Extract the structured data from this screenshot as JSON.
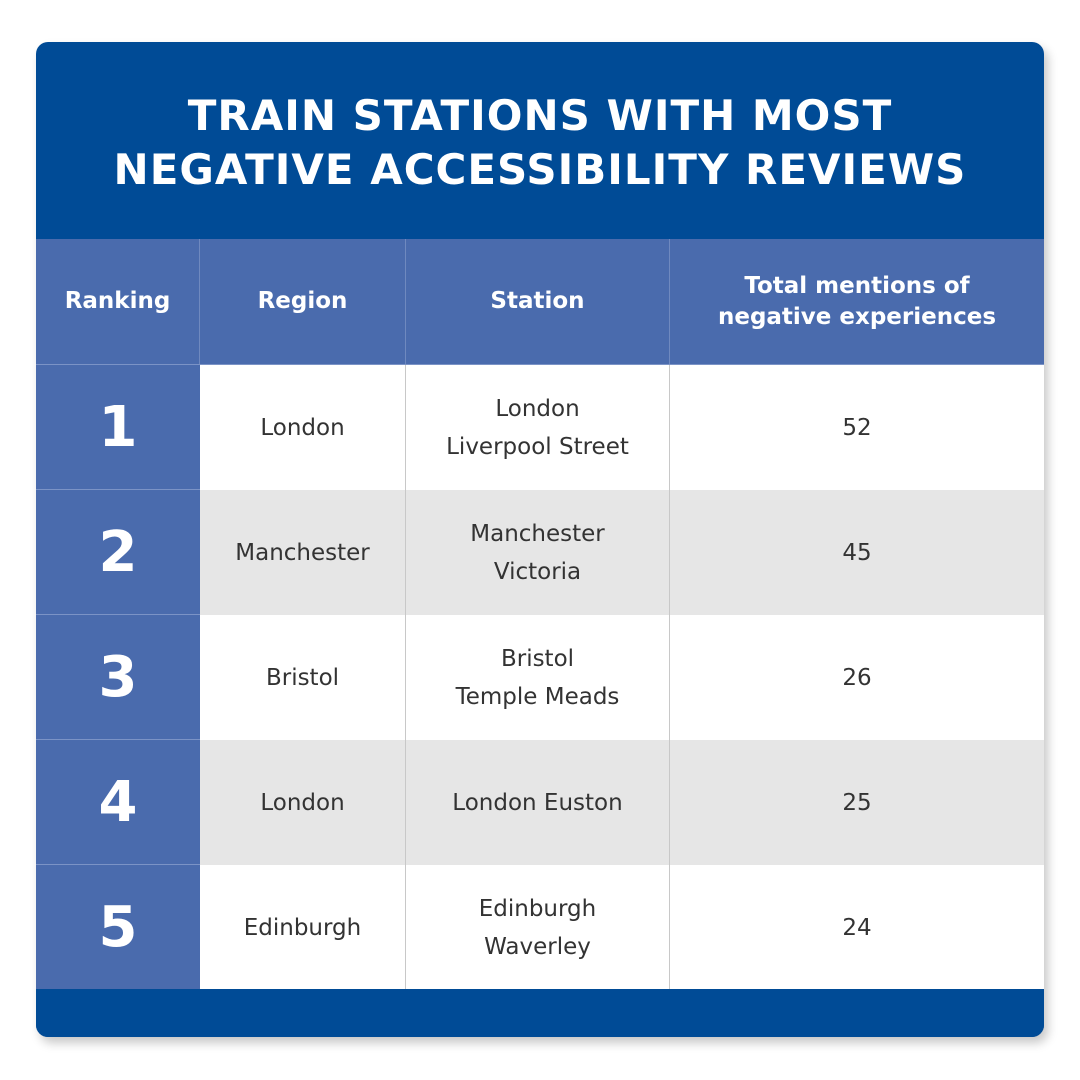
{
  "title": {
    "line1": "TRAIN STATIONS WITH MOST",
    "line2": "NEGATIVE ACCESSIBILITY REVIEWS"
  },
  "table": {
    "headers": {
      "ranking": "Ranking",
      "region": "Region",
      "station": "Station",
      "mentions_line1": "Total mentions of",
      "mentions_line2": "negative experiences"
    },
    "rows": [
      {
        "rank": "1",
        "region": "London",
        "station_line1": "London",
        "station_line2": "Liverpool Street",
        "mentions": "52"
      },
      {
        "rank": "2",
        "region": "Manchester",
        "station_line1": "Manchester",
        "station_line2": "Victoria",
        "mentions": "45"
      },
      {
        "rank": "3",
        "region": "Bristol",
        "station_line1": "Bristol",
        "station_line2": "Temple Meads",
        "mentions": "26"
      },
      {
        "rank": "4",
        "region": "London",
        "station_line1": "London Euston",
        "station_line2": "",
        "mentions": "25"
      },
      {
        "rank": "5",
        "region": "Edinburgh",
        "station_line1": "Edinburgh",
        "station_line2": "Waverley",
        "mentions": "24"
      }
    ]
  },
  "colors": {
    "brand_dark_blue": "#004b96",
    "header_blue": "#4a6bad",
    "row_grey": "#e6e6e6",
    "text_dark": "#333333"
  }
}
